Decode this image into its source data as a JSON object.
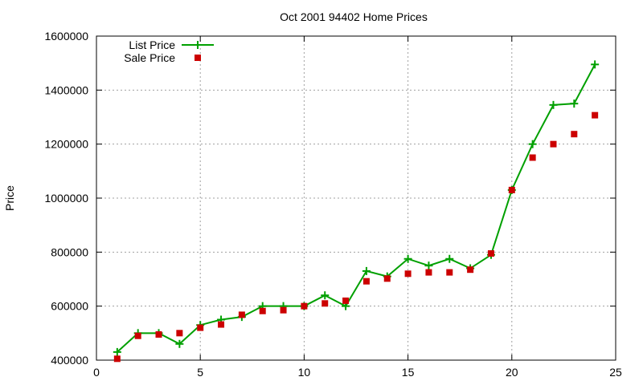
{
  "chart_data": {
    "type": "line",
    "title": "Oct 2001 94402 Home Prices",
    "xlabel": "",
    "ylabel": "Price",
    "xlim": [
      0,
      25
    ],
    "ylim": [
      400000,
      1600000
    ],
    "xticks": [
      0,
      5,
      10,
      15,
      20,
      25
    ],
    "yticks": [
      400000,
      600000,
      800000,
      1000000,
      1200000,
      1400000,
      1600000
    ],
    "grid": true,
    "legend_position": "top-left",
    "series": [
      {
        "name": "List Price",
        "color": "#00a000",
        "style": "line-with-plus-markers",
        "x": [
          1,
          2,
          3,
          4,
          5,
          6,
          7,
          8,
          9,
          10,
          11,
          12,
          13,
          14,
          15,
          16,
          17,
          18,
          19,
          20,
          21,
          22,
          23,
          24
        ],
        "values": [
          430000,
          500000,
          500000,
          460000,
          530000,
          550000,
          560000,
          600000,
          600000,
          600000,
          640000,
          600000,
          730000,
          710000,
          775000,
          750000,
          775000,
          740000,
          790000,
          1030000,
          1200000,
          1345000,
          1350000,
          1495000
        ]
      },
      {
        "name": "Sale Price",
        "color": "#cc0000",
        "style": "square-markers",
        "x": [
          1,
          2,
          3,
          4,
          5,
          6,
          7,
          8,
          9,
          10,
          11,
          12,
          13,
          14,
          15,
          16,
          17,
          18,
          19,
          20,
          21,
          22,
          23,
          24
        ],
        "values": [
          405000,
          490000,
          495000,
          500000,
          520000,
          532000,
          568000,
          582000,
          585000,
          600000,
          610000,
          620000,
          692000,
          702000,
          720000,
          725000,
          725000,
          735000,
          795000,
          1030000,
          1150000,
          1200000,
          1237000,
          1307000
        ]
      }
    ]
  }
}
